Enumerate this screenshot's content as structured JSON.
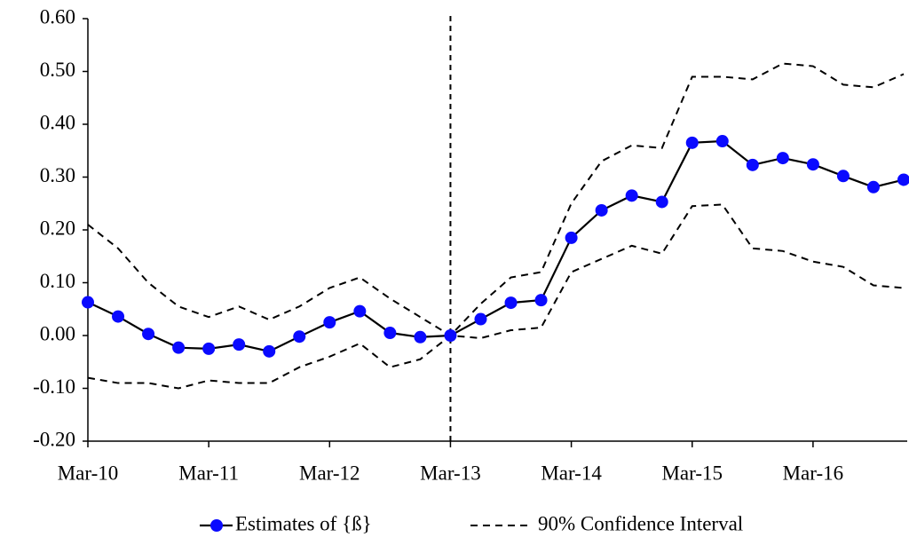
{
  "chart_data": {
    "type": "line",
    "categories": [
      "Mar-10",
      null,
      null,
      null,
      "Mar-11",
      null,
      null,
      null,
      "Mar-12",
      null,
      null,
      null,
      "Mar-13",
      null,
      null,
      null,
      "Mar-14",
      null,
      null,
      null,
      "Mar-15",
      null,
      null,
      null,
      "Mar-16",
      null,
      null,
      null
    ],
    "series": [
      {
        "name": "Estimates of {ß}",
        "color": "#000000",
        "marker_color": "#0a0aff",
        "values": [
          0.063,
          0.036,
          0.003,
          -0.023,
          -0.025,
          -0.017,
          -0.03,
          -0.002,
          0.025,
          0.046,
          0.005,
          -0.003,
          0.0,
          0.031,
          0.062,
          0.067,
          0.185,
          0.237,
          0.265,
          0.253,
          0.365,
          0.368,
          0.323,
          0.336,
          0.324,
          0.302,
          0.281,
          0.295
        ]
      },
      {
        "name": "90% Confidence Interval",
        "color": "#000000",
        "style": "dashed",
        "upper": [
          0.21,
          0.165,
          0.1,
          0.055,
          0.035,
          0.055,
          0.03,
          0.055,
          0.09,
          0.11,
          0.07,
          0.035,
          0.0,
          0.06,
          0.11,
          0.12,
          0.25,
          0.33,
          0.36,
          0.355,
          0.49,
          0.49,
          0.485,
          0.515,
          0.51,
          0.475,
          0.47,
          0.495
        ],
        "lower": [
          -0.08,
          -0.09,
          -0.09,
          -0.1,
          -0.085,
          -0.09,
          -0.09,
          -0.06,
          -0.04,
          -0.015,
          -0.06,
          -0.045,
          0.0,
          -0.005,
          0.01,
          0.015,
          0.12,
          0.145,
          0.17,
          0.155,
          0.245,
          0.248,
          0.165,
          0.16,
          0.14,
          0.13,
          0.095,
          0.09
        ]
      }
    ],
    "reference_line": {
      "x": "Mar-13"
    },
    "ylim": [
      -0.2,
      0.6
    ],
    "yticks": [
      {
        "value": -0.2,
        "label": "-0.20"
      },
      {
        "value": -0.1,
        "label": "-0.10"
      },
      {
        "value": 0,
        "label": "0.00"
      },
      {
        "value": 0.1,
        "label": "0.10"
      },
      {
        "value": 0.2,
        "label": "0.20"
      },
      {
        "value": 0.3,
        "label": "0.30"
      },
      {
        "value": 0.4,
        "label": "0.40"
      },
      {
        "value": 0.5,
        "label": "0.50"
      },
      {
        "value": 0.6,
        "label": "0.60"
      }
    ],
    "grid": false,
    "legend": "bottom"
  }
}
